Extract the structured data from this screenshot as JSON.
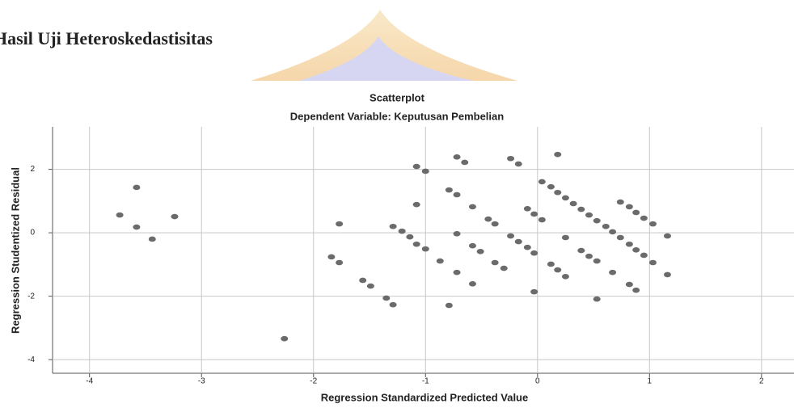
{
  "heading": "Hasil Uji Heteroskedastisitas",
  "chart_data": {
    "type": "scatter",
    "title": "Scatterplot",
    "subtitle": "Dependent Variable: Keputusan Pembelian",
    "x_label": "Regression Standardized Predicted Value",
    "y_label": "Regression Studentized Residual",
    "color": "#6b6b6b",
    "grid": true,
    "xlim": [
      -4.33,
      2.29
    ],
    "ylim": [
      -4.43,
      3.34
    ],
    "xticks": [
      -4,
      -3,
      -2,
      -1,
      0,
      1,
      2
    ],
    "yticks": [
      -4,
      -2,
      0,
      2
    ],
    "x": [
      -3.73,
      -3.58,
      -3.58,
      -3.44,
      -3.24,
      -2.26,
      -1.84,
      -1.77,
      -1.77,
      -1.56,
      -1.49,
      -1.35,
      -1.29,
      -1.29,
      -1.21,
      -1.14,
      -1.08,
      -1.08,
      -1.08,
      -1.0,
      -1.0,
      -0.87,
      -0.79,
      -0.79,
      -0.72,
      -0.72,
      -0.72,
      -0.72,
      -0.65,
      -0.58,
      -0.58,
      -0.58,
      -0.51,
      -0.44,
      -0.38,
      -0.38,
      -0.3,
      -0.24,
      -0.24,
      -0.17,
      -0.17,
      -0.09,
      -0.09,
      -0.03,
      -0.03,
      -0.03,
      0.04,
      0.04,
      0.12,
      0.12,
      0.18,
      0.18,
      0.18,
      0.25,
      0.25,
      0.25,
      0.32,
      0.39,
      0.39,
      0.46,
      0.46,
      0.53,
      0.53,
      0.53,
      0.61,
      0.67,
      0.67,
      0.74,
      0.74,
      0.82,
      0.82,
      0.82,
      0.88,
      0.88,
      0.88,
      0.95,
      0.95,
      1.03,
      1.03,
      1.16,
      1.16
    ],
    "y": [
      0.56,
      1.43,
      0.18,
      -0.2,
      0.51,
      -3.34,
      -0.76,
      -0.94,
      0.28,
      -1.5,
      -1.68,
      -2.06,
      -2.27,
      0.2,
      0.05,
      -0.13,
      -0.36,
      0.89,
      2.09,
      1.94,
      -0.51,
      -0.89,
      1.35,
      -2.29,
      2.39,
      1.2,
      -0.03,
      -1.25,
      2.22,
      0.82,
      -0.41,
      -1.61,
      -0.59,
      0.43,
      -0.94,
      0.28,
      -1.12,
      2.34,
      -0.1,
      2.17,
      -0.28,
      0.76,
      -0.46,
      0.59,
      -0.64,
      -1.86,
      0.41,
      1.61,
      1.45,
      -0.99,
      2.47,
      1.27,
      -1.17,
      1.1,
      -0.15,
      -1.38,
      0.92,
      0.74,
      -0.56,
      0.56,
      -0.74,
      0.38,
      -0.89,
      -2.09,
      0.2,
      0.03,
      -1.25,
      0.97,
      -0.15,
      0.82,
      -0.36,
      -1.63,
      0.64,
      -0.54,
      -1.81,
      0.46,
      -0.71,
      0.28,
      -0.94,
      -0.1,
      -1.32
    ]
  }
}
